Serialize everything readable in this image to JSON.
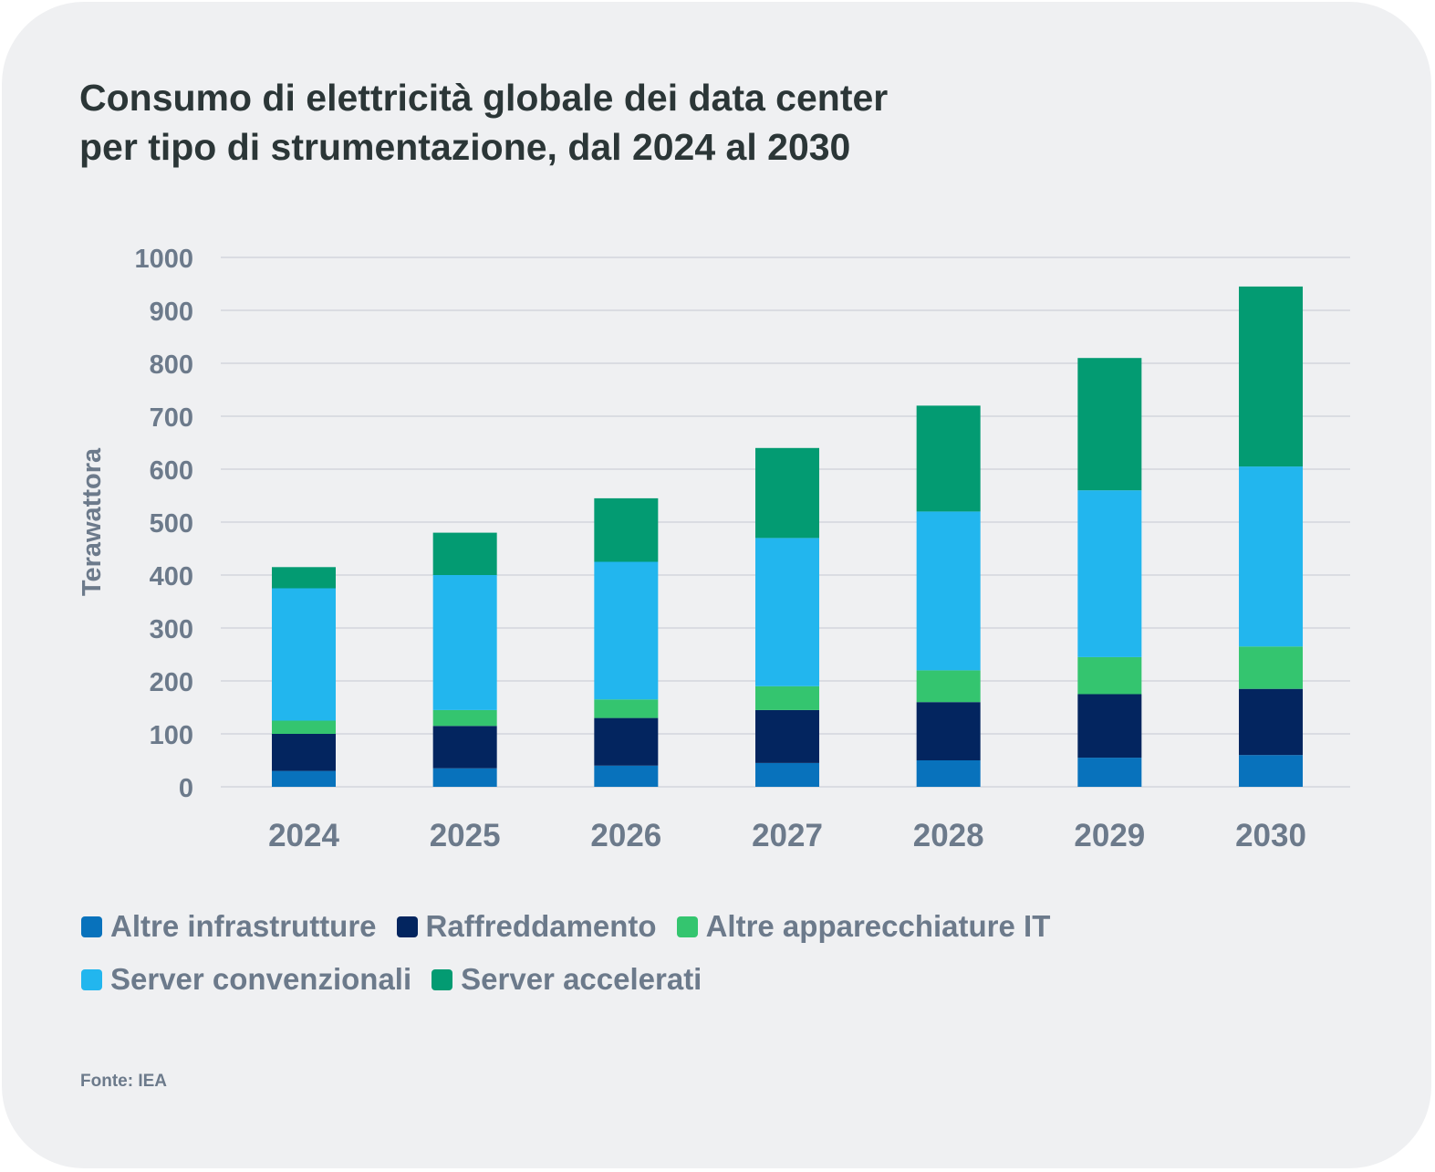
{
  "title": {
    "line1": "Consumo di elettricità globale dei data center",
    "line2": "per tipo di strumentazione, dal 2024 al 2030"
  },
  "source": "Fonte: IEA",
  "chart_data": {
    "type": "bar",
    "stacked": true,
    "title": "Consumo di elettricità globale dei data center per tipo di strumentazione, dal 2024 al 2030",
    "xlabel": "",
    "ylabel": "Terawattora",
    "ylim": [
      0,
      1000
    ],
    "yticks": [
      0,
      100,
      200,
      300,
      400,
      500,
      600,
      700,
      800,
      900,
      1000
    ],
    "grid": true,
    "legend_position": "bottom",
    "categories": [
      "2024",
      "2025",
      "2026",
      "2027",
      "2028",
      "2029",
      "2030"
    ],
    "series": [
      {
        "name": "Altre infrastrutture",
        "color": "#0872bc",
        "values": [
          30,
          35,
          40,
          45,
          50,
          55,
          60
        ]
      },
      {
        "name": "Raffreddamento",
        "color": "#03255f",
        "values": [
          70,
          80,
          90,
          100,
          110,
          120,
          125
        ]
      },
      {
        "name": "Altre apparecchiature IT",
        "color": "#34c56f",
        "values": [
          25,
          30,
          35,
          45,
          60,
          70,
          80
        ]
      },
      {
        "name": "Server convenzionali",
        "color": "#22b6ee",
        "values": [
          250,
          255,
          260,
          280,
          300,
          315,
          340
        ]
      },
      {
        "name": "Server accelerati",
        "color": "#039b72",
        "values": [
          40,
          80,
          120,
          170,
          200,
          250,
          340
        ]
      }
    ]
  },
  "legend": {
    "rows": [
      [
        {
          "label": "Altre infrastrutture",
          "color": "#0872bc"
        },
        {
          "label": "Raffreddamento",
          "color": "#03255f"
        },
        {
          "label": "Altre apparecchiature IT",
          "color": "#34c56f"
        }
      ],
      [
        {
          "label": "Server convenzionali",
          "color": "#22b6ee"
        },
        {
          "label": "Server accelerati",
          "color": "#039b72"
        }
      ]
    ]
  }
}
